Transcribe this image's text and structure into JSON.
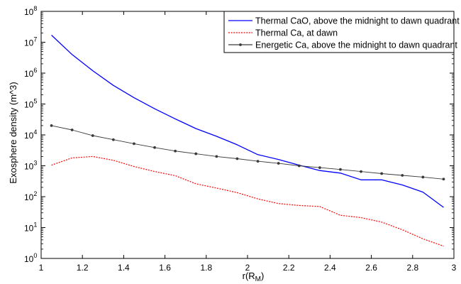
{
  "chart_data": {
    "type": "line",
    "title": "",
    "xlabel": "r(R",
    "xlabel_sub": "M",
    "xlabel_close": ")",
    "ylabel": "Exosphere density (m^3)",
    "xlim": [
      1,
      3
    ],
    "ylim_log10": [
      0,
      8
    ],
    "yscale": "log",
    "grid": false,
    "legend_position": "top-right",
    "x_ticks": [
      1,
      1.2,
      1.4,
      1.6,
      1.8,
      2,
      2.2,
      2.4,
      2.6,
      2.8,
      3
    ],
    "x_tick_labels": [
      "1",
      "1.2",
      "1.4",
      "1.6",
      "1.8",
      "2",
      "2.2",
      "2.4",
      "2.6",
      "2.8",
      "3"
    ],
    "y_tick_exponents": [
      "0",
      "1",
      "2",
      "3",
      "4",
      "5",
      "6",
      "7",
      "8"
    ],
    "series": [
      {
        "name": "Thermal CaO, above the midnight to dawn quadrant",
        "color": "#0000ff",
        "style": "solid",
        "x": [
          1.05,
          1.15,
          1.25,
          1.35,
          1.45,
          1.55,
          1.65,
          1.75,
          1.85,
          1.95,
          2.05,
          2.15,
          2.25,
          2.35,
          2.45,
          2.55,
          2.65,
          2.75,
          2.85,
          2.95
        ],
        "y": [
          17000000,
          4000000,
          1200000,
          400000,
          160000,
          70000,
          33000,
          16000,
          9000,
          4800,
          2300,
          1600,
          1050,
          700,
          580,
          350,
          350,
          240,
          140,
          45
        ]
      },
      {
        "name": "Thermal Ca, at dawn",
        "color": "#ff0000",
        "style": "dotted",
        "x": [
          1.05,
          1.15,
          1.25,
          1.35,
          1.45,
          1.55,
          1.65,
          1.75,
          1.85,
          1.95,
          2.05,
          2.15,
          2.25,
          2.35,
          2.45,
          2.55,
          2.65,
          2.75,
          2.85,
          2.95
        ],
        "y": [
          1050,
          1800,
          2000,
          1500,
          950,
          650,
          480,
          260,
          190,
          135,
          85,
          60,
          52,
          48,
          25,
          21,
          15,
          8.5,
          4.3,
          2.5
        ]
      },
      {
        "name": "Energetic Ca, above the midnight to dawn quadrant",
        "color": "#3a3a3a",
        "style": "solid-markers",
        "x": [
          1.05,
          1.15,
          1.25,
          1.35,
          1.45,
          1.55,
          1.65,
          1.75,
          1.85,
          1.95,
          2.05,
          2.15,
          2.25,
          2.35,
          2.45,
          2.55,
          2.65,
          2.75,
          2.85,
          2.95
        ],
        "y": [
          20000,
          14500,
          9500,
          7000,
          5200,
          3900,
          3000,
          2450,
          2000,
          1700,
          1400,
          1200,
          1000,
          870,
          760,
          650,
          560,
          490,
          430,
          370
        ]
      }
    ]
  }
}
